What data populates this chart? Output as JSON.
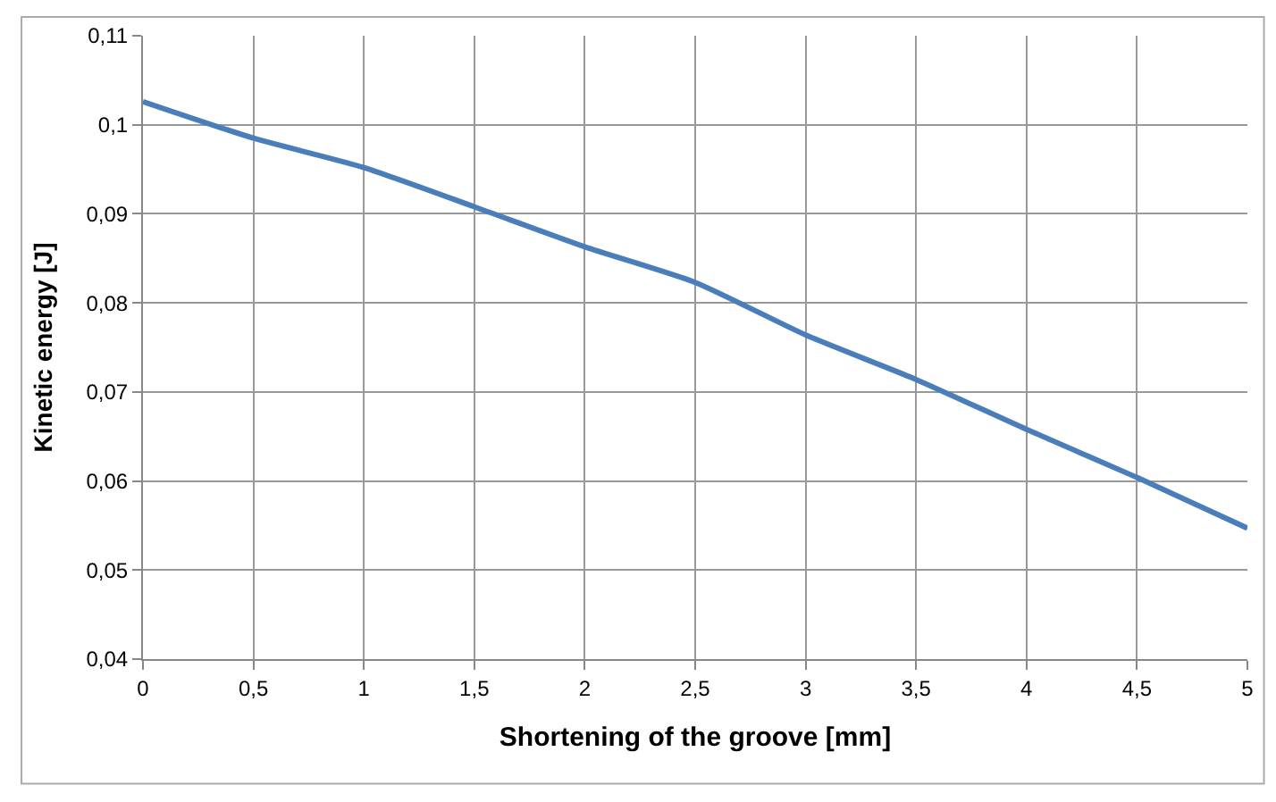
{
  "chart_data": {
    "type": "line",
    "xlabel": "Shortening of the groove [mm]",
    "ylabel": "Kinetic energy [J]",
    "x": [
      0,
      0.5,
      1,
      1.5,
      2,
      2.5,
      3,
      3.5,
      4,
      4.5,
      5
    ],
    "series": [
      {
        "color": "#4a7ebb",
        "values": [
          0.1026,
          0.0985,
          0.0952,
          0.0908,
          0.0863,
          0.0823,
          0.0764,
          0.0714,
          0.0658,
          0.0604,
          0.0547
        ]
      }
    ],
    "xlim": [
      0,
      5
    ],
    "xticks": [
      0,
      {
        "value": 0.5,
        "label": "0,5"
      },
      1,
      {
        "value": 1.5,
        "label": "1,5"
      },
      2,
      {
        "value": 2.5,
        "label": "2,5"
      },
      3,
      {
        "value": 3.5,
        "label": "3,5"
      },
      4,
      {
        "value": 4.5,
        "label": "4,5"
      },
      5
    ],
    "ylim": [
      0.04,
      0.11
    ],
    "yticks": [
      {
        "value": 0.04,
        "label": "0,04"
      },
      {
        "value": 0.05,
        "label": "0,05"
      },
      {
        "value": 0.06,
        "label": "0,06"
      },
      {
        "value": 0.07,
        "label": "0,07"
      },
      {
        "value": 0.08,
        "label": "0,08"
      },
      {
        "value": 0.09,
        "label": "0,09"
      },
      {
        "value": 0.1,
        "label": "0,1"
      },
      {
        "value": 0.11,
        "label": "0,11"
      }
    ],
    "grid": true,
    "marker": "none",
    "line_style": "solid"
  }
}
